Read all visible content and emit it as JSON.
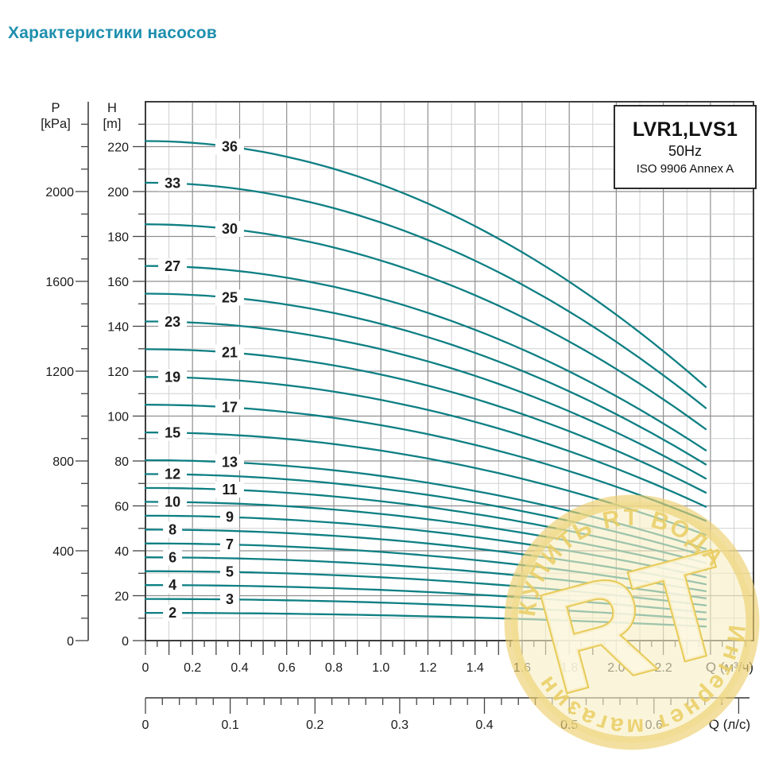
{
  "page": {
    "title": "Характеристики насосов",
    "title_color": "#1e8fae"
  },
  "legend": {
    "model": "LVR1,LVS1",
    "frequency": "50Hz",
    "standard": "ISO 9906 Annex A"
  },
  "watermark": {
    "letters": "RT",
    "arc_top": "КУПИТЬ RT ВОДА",
    "arc_bottom": "Интернет магазин",
    "disk_color": "#f7efc3",
    "ring_color": "#edd06e",
    "letter_fill": "#fcf8e2",
    "letter_stroke": "#e7ca58",
    "arc_text_color": "#e9cd62"
  },
  "chart_data": {
    "type": "line",
    "title": "LVR1,LVS1",
    "subtitle": "50Hz ISO 9906 Annex A",
    "grid": true,
    "legend_position": "top-right",
    "x_axis_primary": {
      "symbol": "Q",
      "label": "Q (м³/ч)",
      "tick_labels": [
        "0",
        "0.2",
        "0.4",
        "0.6",
        "0.8",
        "1.0",
        "1.2",
        "1.4",
        "1.6",
        "1.8",
        "2.0",
        "2.2"
      ],
      "tick_values": [
        0,
        0.2,
        0.4,
        0.6,
        0.8,
        1.0,
        1.2,
        1.4,
        1.6,
        1.8,
        2.0,
        2.2
      ],
      "minor_step": 0.05,
      "mid_step": 0.1,
      "range": [
        0,
        2.58
      ]
    },
    "x_axis_secondary": {
      "symbol": "Q",
      "label": "Q (л/с)",
      "tick_labels": [
        "0",
        "0.1",
        "0.2",
        "0.3",
        "0.4",
        "0.5",
        "0.6"
      ],
      "tick_values": [
        0,
        0.1,
        0.2,
        0.3,
        0.4,
        0.5,
        0.6
      ],
      "minor_step": 0.02,
      "major_step": 0.1,
      "range": [
        0,
        0.71
      ],
      "conversion_to_m3h": 3.6
    },
    "y_axis_pressure": {
      "symbol": "P",
      "unit": "[kPa]",
      "tick_labels": [
        "0",
        "400",
        "800",
        "1200",
        "1600",
        "2000"
      ],
      "tick_values": [
        0,
        400,
        800,
        1200,
        1600,
        2000
      ],
      "minor_step": 100,
      "range": [
        0,
        2400
      ]
    },
    "y_axis_head": {
      "symbol": "H",
      "unit": "[m]",
      "tick_labels": [
        "0",
        "20",
        "40",
        "60",
        "80",
        "100",
        "120",
        "140",
        "160",
        "180",
        "200",
        "220"
      ],
      "tick_values": [
        0,
        20,
        40,
        60,
        80,
        100,
        120,
        140,
        160,
        180,
        200,
        220
      ],
      "minor_step": 10,
      "range": [
        0,
        240
      ]
    },
    "curves": {
      "color": "#0e7f83",
      "stages": [
        2,
        3,
        4,
        5,
        6,
        7,
        8,
        9,
        10,
        11,
        12,
        13,
        15,
        17,
        19,
        21,
        23,
        25,
        27,
        30,
        33,
        36
      ],
      "q_m3h_samples": [
        0,
        0.2,
        0.4,
        0.6,
        0.8,
        1.0,
        1.2,
        1.4,
        1.6,
        1.8,
        2.0,
        2.2,
        2.38
      ],
      "head_per_stage_m": [
        6.18,
        6.16,
        6.09,
        5.99,
        5.84,
        5.64,
        5.41,
        5.13,
        4.81,
        4.44,
        4.03,
        3.58,
        3.14
      ],
      "head_at_q0_m": [
        12.4,
        18.5,
        24.7,
        30.9,
        37.1,
        43.3,
        49.4,
        55.6,
        61.8,
        68.0,
        74.2,
        80.3,
        92.7,
        105.1,
        117.4,
        129.8,
        142.1,
        154.5,
        166.9,
        185.4,
        203.9,
        222.5
      ],
      "head_at_qmax_m": [
        6.3,
        9.4,
        12.6,
        15.7,
        18.8,
        22.0,
        25.1,
        28.3,
        31.4,
        34.5,
        37.7,
        40.8,
        47.1,
        53.4,
        59.7,
        65.9,
        72.2,
        78.5,
        84.8,
        94.2,
        103.6,
        113.0
      ],
      "model": {
        "h0_m": 6.18,
        "k": 0.537,
        "q_max_m3h": 2.38
      },
      "label_q_right_m3h": 0.358,
      "label_q_left_m3h": 0.115
    }
  }
}
